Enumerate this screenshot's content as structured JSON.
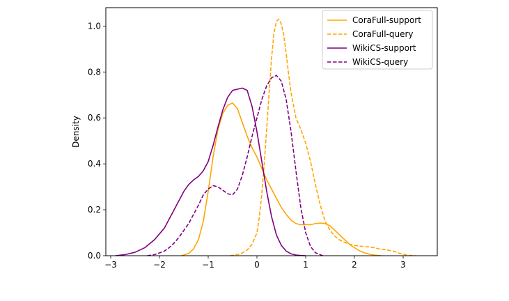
{
  "chart_data": {
    "type": "line",
    "title": "",
    "xlabel": "",
    "ylabel": "Density",
    "xlim": [
      -3.1,
      3.7
    ],
    "ylim": [
      0.0,
      1.08
    ],
    "xticks": [
      -3,
      -2,
      -1,
      0,
      1,
      2,
      3
    ],
    "xtick_labels": [
      "−3",
      "−2",
      "−1",
      "0",
      "1",
      "2",
      "3"
    ],
    "yticks": [
      0.0,
      0.2,
      0.4,
      0.6,
      0.8,
      1.0
    ],
    "ytick_labels": [
      "0.0",
      "0.2",
      "0.4",
      "0.6",
      "0.8",
      "1.0"
    ],
    "grid": false,
    "legend_position": "top-right",
    "series": [
      {
        "name": "CoraFull-support",
        "color": "#FFA500",
        "style": "solid",
        "x": [
          -1.55,
          -1.4,
          -1.3,
          -1.2,
          -1.1,
          -1.0,
          -0.9,
          -0.8,
          -0.7,
          -0.6,
          -0.5,
          -0.4,
          -0.3,
          -0.2,
          -0.1,
          0.0,
          0.1,
          0.2,
          0.3,
          0.4,
          0.5,
          0.6,
          0.7,
          0.8,
          0.9,
          1.0,
          1.1,
          1.2,
          1.3,
          1.4,
          1.5,
          1.6,
          1.7,
          1.8,
          1.9,
          2.0,
          2.1,
          2.2,
          2.3,
          2.4,
          2.55
        ],
        "y": [
          0.0,
          0.01,
          0.03,
          0.07,
          0.15,
          0.28,
          0.43,
          0.55,
          0.62,
          0.655,
          0.665,
          0.64,
          0.58,
          0.52,
          0.47,
          0.43,
          0.38,
          0.33,
          0.29,
          0.25,
          0.21,
          0.18,
          0.155,
          0.14,
          0.135,
          0.135,
          0.135,
          0.14,
          0.142,
          0.14,
          0.13,
          0.11,
          0.09,
          0.07,
          0.05,
          0.035,
          0.022,
          0.013,
          0.007,
          0.003,
          0.0
        ]
      },
      {
        "name": "CoraFull-query",
        "color": "#FFA500",
        "style": "dashed",
        "x": [
          -0.55,
          -0.4,
          -0.3,
          -0.2,
          -0.1,
          0.0,
          0.05,
          0.1,
          0.15,
          0.2,
          0.25,
          0.3,
          0.35,
          0.4,
          0.45,
          0.5,
          0.55,
          0.6,
          0.65,
          0.7,
          0.8,
          0.9,
          1.0,
          1.1,
          1.2,
          1.3,
          1.4,
          1.5,
          1.6,
          1.7,
          1.8,
          1.9,
          2.0,
          2.1,
          2.2,
          2.3,
          2.4,
          2.5,
          2.6,
          2.7,
          2.8,
          2.9,
          3.0,
          3.1,
          3.25
        ],
        "y": [
          0.0,
          0.005,
          0.012,
          0.025,
          0.05,
          0.1,
          0.17,
          0.27,
          0.4,
          0.55,
          0.71,
          0.86,
          0.97,
          1.02,
          1.03,
          1.01,
          0.96,
          0.88,
          0.79,
          0.71,
          0.6,
          0.55,
          0.49,
          0.41,
          0.31,
          0.22,
          0.15,
          0.11,
          0.085,
          0.068,
          0.058,
          0.05,
          0.045,
          0.042,
          0.04,
          0.038,
          0.035,
          0.03,
          0.027,
          0.024,
          0.02,
          0.012,
          0.006,
          0.002,
          0.0
        ]
      },
      {
        "name": "WikiCS-support",
        "color": "#800080",
        "style": "solid",
        "x": [
          -2.9,
          -2.7,
          -2.5,
          -2.3,
          -2.1,
          -1.9,
          -1.7,
          -1.5,
          -1.4,
          -1.3,
          -1.2,
          -1.1,
          -1.0,
          -0.9,
          -0.8,
          -0.7,
          -0.6,
          -0.5,
          -0.4,
          -0.3,
          -0.2,
          -0.1,
          0.0,
          0.1,
          0.2,
          0.3,
          0.4,
          0.5,
          0.6,
          0.7,
          0.8,
          0.9,
          1.0
        ],
        "y": [
          0.0,
          0.005,
          0.015,
          0.035,
          0.07,
          0.12,
          0.2,
          0.28,
          0.31,
          0.33,
          0.345,
          0.37,
          0.41,
          0.48,
          0.56,
          0.635,
          0.69,
          0.72,
          0.725,
          0.73,
          0.72,
          0.65,
          0.54,
          0.41,
          0.28,
          0.17,
          0.09,
          0.045,
          0.02,
          0.008,
          0.003,
          0.001,
          0.0
        ]
      },
      {
        "name": "WikiCS-query",
        "color": "#800080",
        "style": "dashed",
        "x": [
          -2.25,
          -2.1,
          -2.0,
          -1.9,
          -1.8,
          -1.7,
          -1.6,
          -1.5,
          -1.4,
          -1.3,
          -1.2,
          -1.1,
          -1.0,
          -0.9,
          -0.8,
          -0.7,
          -0.6,
          -0.5,
          -0.4,
          -0.3,
          -0.2,
          -0.1,
          0.0,
          0.1,
          0.2,
          0.3,
          0.4,
          0.5,
          0.6,
          0.7,
          0.8,
          0.9,
          1.0,
          1.1,
          1.2,
          1.35
        ],
        "y": [
          0.0,
          0.005,
          0.012,
          0.02,
          0.035,
          0.055,
          0.08,
          0.11,
          0.14,
          0.18,
          0.22,
          0.265,
          0.29,
          0.305,
          0.3,
          0.285,
          0.27,
          0.265,
          0.29,
          0.35,
          0.43,
          0.52,
          0.6,
          0.68,
          0.74,
          0.775,
          0.785,
          0.76,
          0.68,
          0.54,
          0.37,
          0.21,
          0.1,
          0.04,
          0.013,
          0.0
        ]
      }
    ]
  }
}
